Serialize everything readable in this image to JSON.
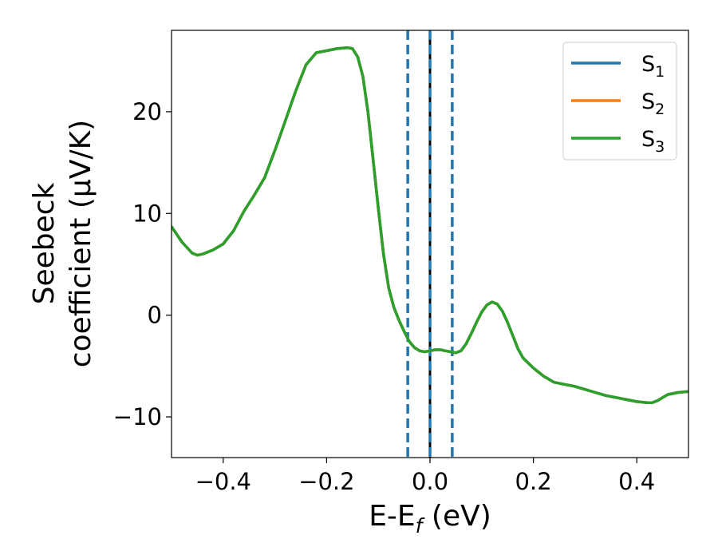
{
  "chart_data": {
    "type": "line",
    "xlabel": "E-E_f (eV)",
    "xlabel_main": "E-E",
    "xlabel_sub": "f",
    "xlabel_unit": " (eV)",
    "ylabel_line1": "Seebeck",
    "ylabel_line2": "coefficient  (μV/K)",
    "xlim": [
      -0.5,
      0.5
    ],
    "ylim": [
      -14,
      28
    ],
    "xticks": [
      -0.4,
      -0.2,
      0.0,
      0.2,
      0.4
    ],
    "xtick_labels": [
      "−0.4",
      "−0.2",
      "0.0",
      "0.2",
      "0.4"
    ],
    "yticks": [
      -10,
      0,
      10,
      20
    ],
    "ytick_labels": [
      "−10",
      "0",
      "10",
      "20"
    ],
    "grid": false,
    "legend_position": "top-right",
    "vlines": [
      {
        "x": -0.043,
        "style": "dashed",
        "color": "#1f77b4"
      },
      {
        "x": 0.0,
        "style": "solid",
        "color": "#000000"
      },
      {
        "x": 0.0,
        "style": "dashed",
        "color": "#1f77b4"
      },
      {
        "x": 0.043,
        "style": "dashed",
        "color": "#1f77b4"
      }
    ],
    "x": [
      -0.5,
      -0.48,
      -0.46,
      -0.45,
      -0.44,
      -0.42,
      -0.4,
      -0.38,
      -0.36,
      -0.34,
      -0.32,
      -0.3,
      -0.28,
      -0.26,
      -0.24,
      -0.22,
      -0.2,
      -0.18,
      -0.16,
      -0.15,
      -0.14,
      -0.13,
      -0.12,
      -0.11,
      -0.1,
      -0.09,
      -0.08,
      -0.07,
      -0.06,
      -0.05,
      -0.04,
      -0.03,
      -0.02,
      -0.01,
      0.0,
      0.01,
      0.02,
      0.03,
      0.04,
      0.05,
      0.06,
      0.07,
      0.08,
      0.09,
      0.1,
      0.11,
      0.12,
      0.13,
      0.14,
      0.15,
      0.16,
      0.17,
      0.18,
      0.2,
      0.22,
      0.24,
      0.26,
      0.28,
      0.3,
      0.32,
      0.34,
      0.36,
      0.38,
      0.4,
      0.42,
      0.43,
      0.44,
      0.46,
      0.48,
      0.5
    ],
    "series": [
      {
        "name": "S",
        "sub": "1",
        "color": "#1f77b4",
        "values": [
          8.7,
          7.2,
          6.1,
          5.9,
          6.0,
          6.4,
          7.0,
          8.3,
          10.2,
          11.8,
          13.5,
          16.2,
          19.1,
          22.0,
          24.6,
          25.8,
          26.0,
          26.2,
          26.3,
          26.2,
          25.4,
          23.5,
          20.0,
          15.3,
          10.5,
          6.0,
          2.7,
          0.8,
          -0.5,
          -1.6,
          -2.6,
          -3.2,
          -3.5,
          -3.6,
          -3.5,
          -3.4,
          -3.4,
          -3.5,
          -3.6,
          -3.7,
          -3.5,
          -2.8,
          -1.8,
          -0.7,
          0.3,
          1.0,
          1.3,
          1.1,
          0.4,
          -0.7,
          -2.0,
          -3.3,
          -4.2,
          -5.2,
          -6.0,
          -6.6,
          -6.8,
          -7.0,
          -7.3,
          -7.6,
          -7.9,
          -8.1,
          -8.3,
          -8.5,
          -8.6,
          -8.6,
          -8.4,
          -7.8,
          -7.6,
          -7.5
        ]
      },
      {
        "name": "S",
        "sub": "2",
        "color": "#ff7f0e",
        "values": [
          8.7,
          7.2,
          6.1,
          5.9,
          6.0,
          6.4,
          7.0,
          8.3,
          10.2,
          11.8,
          13.5,
          16.2,
          19.1,
          22.0,
          24.6,
          25.8,
          26.0,
          26.2,
          26.3,
          26.2,
          25.4,
          23.5,
          20.0,
          15.3,
          10.5,
          6.0,
          2.7,
          0.8,
          -0.5,
          -1.6,
          -2.6,
          -3.2,
          -3.5,
          -3.6,
          -3.5,
          -3.4,
          -3.4,
          -3.5,
          -3.6,
          -3.7,
          -3.5,
          -2.8,
          -1.8,
          -0.7,
          0.3,
          1.0,
          1.3,
          1.1,
          0.4,
          -0.7,
          -2.0,
          -3.3,
          -4.2,
          -5.2,
          -6.0,
          -6.6,
          -6.8,
          -7.0,
          -7.3,
          -7.6,
          -7.9,
          -8.1,
          -8.3,
          -8.5,
          -8.6,
          -8.6,
          -8.4,
          -7.8,
          -7.6,
          -7.5
        ]
      },
      {
        "name": "S",
        "sub": "3",
        "color": "#2ca02c",
        "values": [
          8.7,
          7.2,
          6.1,
          5.9,
          6.0,
          6.4,
          7.0,
          8.3,
          10.2,
          11.8,
          13.5,
          16.2,
          19.1,
          22.0,
          24.6,
          25.8,
          26.0,
          26.2,
          26.3,
          26.2,
          25.4,
          23.5,
          20.0,
          15.3,
          10.5,
          6.0,
          2.7,
          0.8,
          -0.5,
          -1.6,
          -2.6,
          -3.2,
          -3.5,
          -3.6,
          -3.5,
          -3.4,
          -3.4,
          -3.5,
          -3.6,
          -3.7,
          -3.5,
          -2.8,
          -1.8,
          -0.7,
          0.3,
          1.0,
          1.3,
          1.1,
          0.4,
          -0.7,
          -2.0,
          -3.3,
          -4.2,
          -5.2,
          -6.0,
          -6.6,
          -6.8,
          -7.0,
          -7.3,
          -7.6,
          -7.9,
          -8.1,
          -8.3,
          -8.5,
          -8.6,
          -8.6,
          -8.4,
          -7.8,
          -7.6,
          -7.5
        ]
      }
    ]
  }
}
